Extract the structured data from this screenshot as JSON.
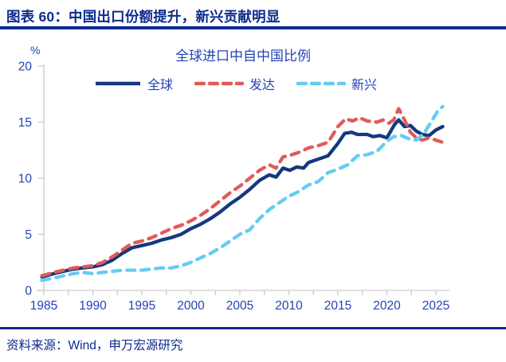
{
  "header": {
    "title": "图表 60：中国出口份额提升，新兴贡献明显"
  },
  "footer": {
    "source": "资料来源：Wind，申万宏源研究"
  },
  "colors": {
    "header_navy": "#0D2B8E",
    "text_blue": "#2443B5",
    "axis_gray": "#C9C9C9",
    "background": "#FFFFFF"
  },
  "chart_data": {
    "type": "line",
    "title": "全球进口中自中国比例",
    "ylabel": "%",
    "xlabel": "",
    "ylim": [
      0,
      20
    ],
    "yticks": [
      0,
      5,
      10,
      15,
      20
    ],
    "xlim": [
      1984.3,
      2026.2
    ],
    "xtick_labels": [
      1985,
      1990,
      1995,
      2000,
      2005,
      2010,
      2015,
      2020,
      2025
    ],
    "xtick_minor_step": 2.5,
    "grid": false,
    "legend_position": "top",
    "series": [
      {
        "name": "全球",
        "color": "#14387F",
        "style": "solid",
        "points": [
          [
            1984.8,
            1.2
          ],
          [
            1986,
            1.5
          ],
          [
            1987,
            1.7
          ],
          [
            1988,
            1.9
          ],
          [
            1989,
            2.0
          ],
          [
            1990,
            2.1
          ],
          [
            1991,
            2.3
          ],
          [
            1992,
            2.7
          ],
          [
            1993,
            3.3
          ],
          [
            1994,
            3.8
          ],
          [
            1995,
            4.0
          ],
          [
            1996,
            4.2
          ],
          [
            1997,
            4.5
          ],
          [
            1998,
            4.7
          ],
          [
            1999,
            5.0
          ],
          [
            2000,
            5.5
          ],
          [
            2001,
            5.9
          ],
          [
            2002,
            6.4
          ],
          [
            2003,
            7.0
          ],
          [
            2004,
            7.7
          ],
          [
            2005,
            8.3
          ],
          [
            2006,
            9.0
          ],
          [
            2007,
            9.8
          ],
          [
            2008,
            10.3
          ],
          [
            2008.7,
            10.1
          ],
          [
            2009.4,
            10.9
          ],
          [
            2010.1,
            10.7
          ],
          [
            2010.8,
            11.0
          ],
          [
            2011.5,
            10.9
          ],
          [
            2012,
            11.4
          ],
          [
            2013,
            11.7
          ],
          [
            2014,
            12.0
          ],
          [
            2015,
            13.1
          ],
          [
            2015.7,
            14.0
          ],
          [
            2016.4,
            14.1
          ],
          [
            2017,
            13.9
          ],
          [
            2018,
            13.9
          ],
          [
            2018.6,
            13.7
          ],
          [
            2019.3,
            13.8
          ],
          [
            2020,
            13.6
          ],
          [
            2020.8,
            14.8
          ],
          [
            2021.2,
            15.2
          ],
          [
            2021.8,
            14.6
          ],
          [
            2022.4,
            14.7
          ],
          [
            2023,
            14.2
          ],
          [
            2023.6,
            13.9
          ],
          [
            2024.3,
            13.8
          ],
          [
            2025,
            14.3
          ],
          [
            2025.7,
            14.6
          ]
        ]
      },
      {
        "name": "发达",
        "color": "#E15A5A",
        "style": "dashed",
        "points": [
          [
            1984.8,
            1.3
          ],
          [
            1986,
            1.6
          ],
          [
            1987,
            1.8
          ],
          [
            1988,
            2.0
          ],
          [
            1989,
            2.1
          ],
          [
            1990,
            2.2
          ],
          [
            1991,
            2.5
          ],
          [
            1992,
            3.0
          ],
          [
            1993,
            3.6
          ],
          [
            1994,
            4.2
          ],
          [
            1995,
            4.4
          ],
          [
            1996,
            4.7
          ],
          [
            1997,
            5.1
          ],
          [
            1998,
            5.5
          ],
          [
            1999,
            5.8
          ],
          [
            2000,
            6.2
          ],
          [
            2001,
            6.7
          ],
          [
            2002,
            7.3
          ],
          [
            2003,
            8.0
          ],
          [
            2004,
            8.7
          ],
          [
            2005,
            9.3
          ],
          [
            2006,
            10.0
          ],
          [
            2007,
            10.7
          ],
          [
            2008,
            11.2
          ],
          [
            2008.7,
            10.9
          ],
          [
            2009.4,
            11.9
          ],
          [
            2010,
            12.0
          ],
          [
            2011,
            12.3
          ],
          [
            2012,
            12.7
          ],
          [
            2013,
            12.9
          ],
          [
            2014,
            13.2
          ],
          [
            2015,
            14.6
          ],
          [
            2015.8,
            15.3
          ],
          [
            2016.5,
            15.1
          ],
          [
            2017.2,
            15.4
          ],
          [
            2018,
            15.1
          ],
          [
            2019,
            15.0
          ],
          [
            2019.6,
            15.2
          ],
          [
            2020.2,
            14.9
          ],
          [
            2020.7,
            15.2
          ],
          [
            2021.2,
            16.2
          ],
          [
            2021.8,
            15.2
          ],
          [
            2022.4,
            14.1
          ],
          [
            2023,
            13.6
          ],
          [
            2023.6,
            13.4
          ],
          [
            2024.3,
            13.6
          ],
          [
            2025,
            13.4
          ],
          [
            2025.7,
            13.2
          ]
        ]
      },
      {
        "name": "新兴",
        "color": "#66CCF2",
        "style": "dashed",
        "points": [
          [
            1984.8,
            0.9
          ],
          [
            1986,
            1.1
          ],
          [
            1987,
            1.3
          ],
          [
            1988,
            1.5
          ],
          [
            1989,
            1.6
          ],
          [
            1990,
            1.5
          ],
          [
            1991,
            1.6
          ],
          [
            1992,
            1.7
          ],
          [
            1993,
            1.8
          ],
          [
            1994,
            1.8
          ],
          [
            1995,
            1.8
          ],
          [
            1996,
            1.9
          ],
          [
            1997,
            2.0
          ],
          [
            1998,
            2.0
          ],
          [
            1999,
            2.2
          ],
          [
            2000,
            2.5
          ],
          [
            2001,
            2.9
          ],
          [
            2002,
            3.3
          ],
          [
            2003,
            3.8
          ],
          [
            2004,
            4.4
          ],
          [
            2005,
            5.0
          ],
          [
            2006,
            5.4
          ],
          [
            2007,
            6.4
          ],
          [
            2008,
            7.2
          ],
          [
            2009,
            7.8
          ],
          [
            2010,
            8.4
          ],
          [
            2011,
            8.8
          ],
          [
            2012,
            9.4
          ],
          [
            2013,
            9.7
          ],
          [
            2014,
            10.5
          ],
          [
            2015,
            10.8
          ],
          [
            2016,
            11.2
          ],
          [
            2017,
            12.0
          ],
          [
            2018,
            12.1
          ],
          [
            2019,
            12.4
          ],
          [
            2020,
            13.3
          ],
          [
            2020.7,
            13.7
          ],
          [
            2021.5,
            13.8
          ],
          [
            2022.3,
            13.5
          ],
          [
            2023,
            13.4
          ],
          [
            2023.8,
            14.0
          ],
          [
            2024.5,
            15.0
          ],
          [
            2025.2,
            16.0
          ],
          [
            2025.7,
            16.4
          ]
        ]
      }
    ]
  }
}
